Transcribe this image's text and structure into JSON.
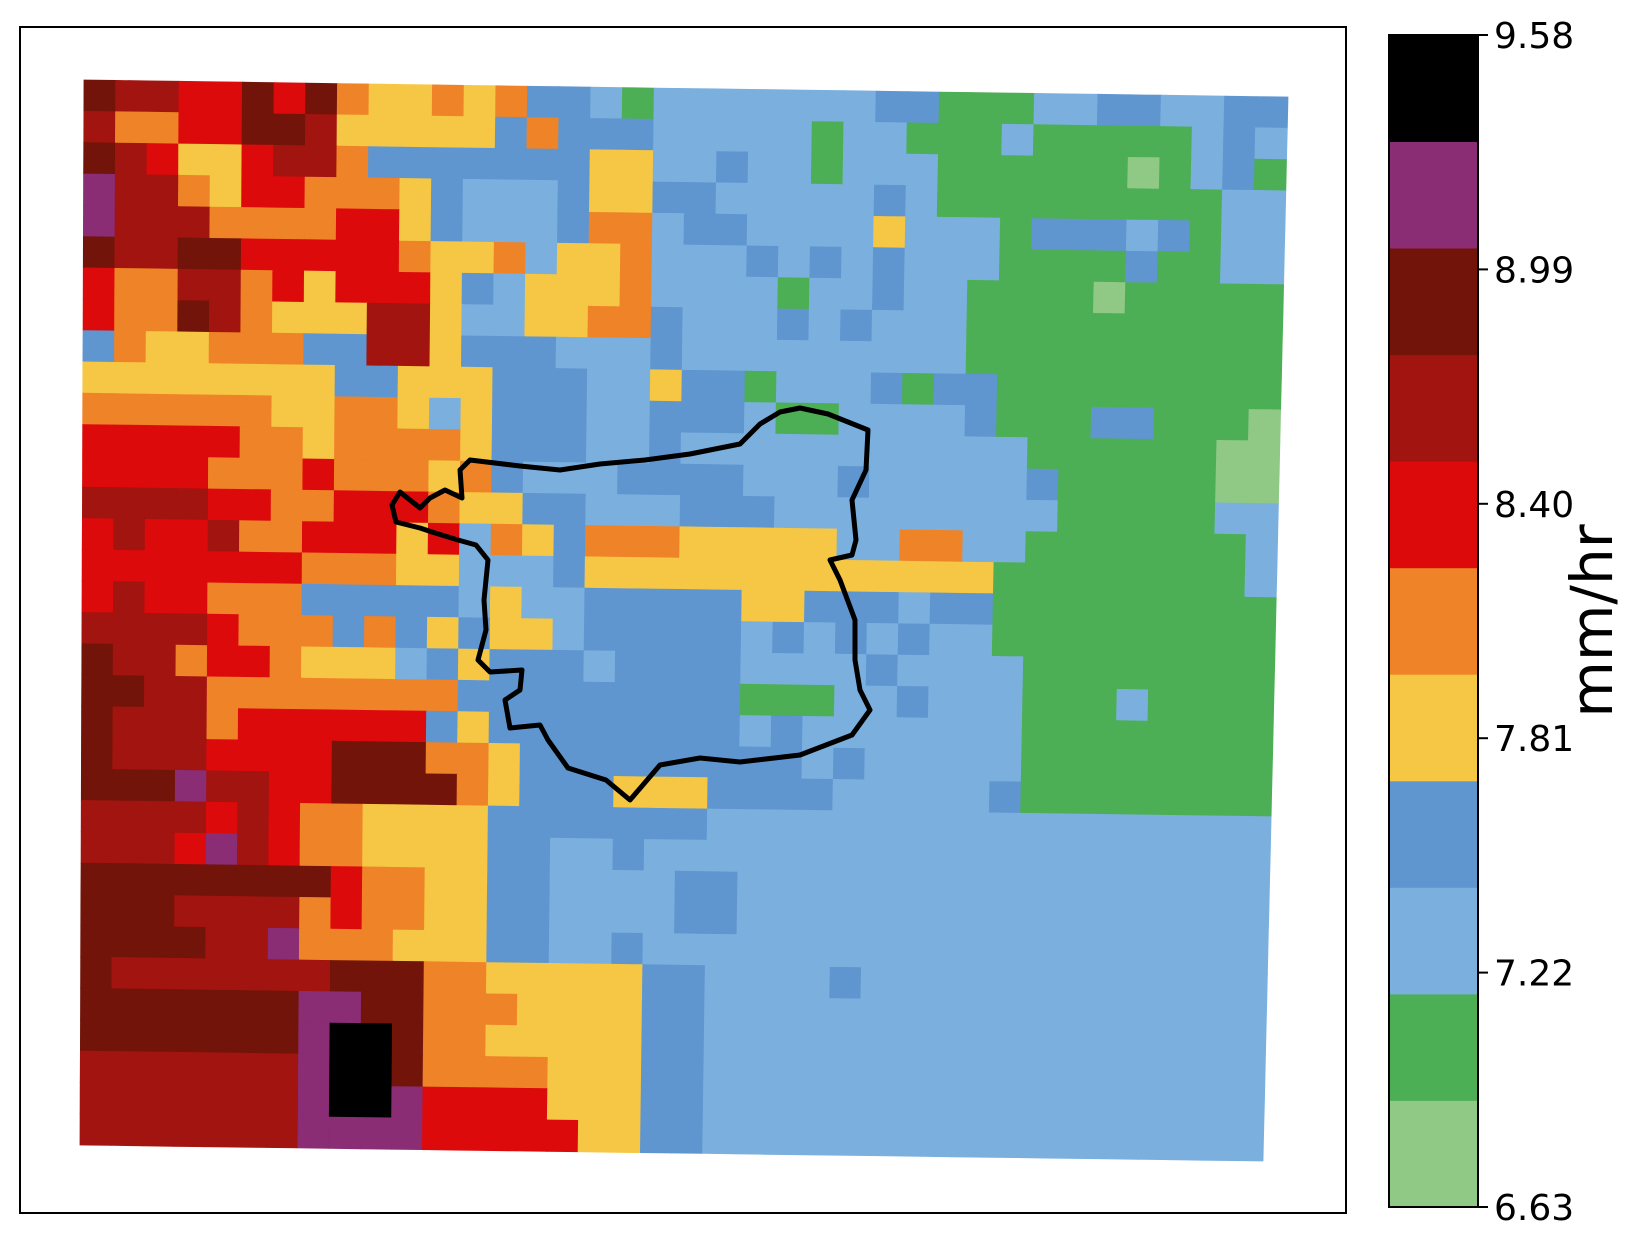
{
  "chart_data": {
    "type": "heatmap",
    "title": "",
    "xlabel": "",
    "ylabel": "",
    "colorbar": {
      "label": "mm/hr",
      "ticks": [
        "9.58",
        "8.99",
        "8.40",
        "7.81",
        "7.22",
        "6.63"
      ],
      "range": [
        6.63,
        9.58
      ],
      "bins": [
        {
          "from": 6.63,
          "to": 6.925,
          "color": "#90c986"
        },
        {
          "from": 6.925,
          "to": 7.22,
          "color": "#4daf55"
        },
        {
          "from": 7.22,
          "to": 7.515,
          "color": "#7bb0de"
        },
        {
          "from": 7.515,
          "to": 7.81,
          "color": "#5f96d0"
        },
        {
          "from": 7.81,
          "to": 8.105,
          "color": "#f6c744"
        },
        {
          "from": 8.105,
          "to": 8.4,
          "color": "#ef8328"
        },
        {
          "from": 8.4,
          "to": 8.695,
          "color": "#dd0a0c"
        },
        {
          "from": 8.695,
          "to": 8.99,
          "color": "#a2140f"
        },
        {
          "from": 8.99,
          "to": 9.285,
          "color": "#721409"
        },
        {
          "from": 9.285,
          "to": 9.58,
          "color": "#8a2d74"
        },
        {
          "from": 9.58,
          "to": 9.875,
          "color": "#000000"
        }
      ]
    },
    "grid_cols": 38,
    "grid_rows": 34,
    "grid_note": "rows top-to-bottom, one character per cell: a=6.63-6.93 b=6.93-7.22 c=7.22-7.52 d=7.52-7.81 e=7.81-8.11 f=8.11-8.40 g=8.40-8.70 h=8.70-8.99 i=8.99-9.29 j=9.29-9.58 k=>=9.58",
    "grid": [
      "ihhggigifeefefddcbcccccccddbbbccddccdd",
      "hffggiiheeeeedfdddcccccbccbbbcbbbbbcdc",
      "ihgeeghhfdddddddeeccdccbcccbbbbbbabcdb",
      "jhhfeggfffedcccdeeddcccccdcbbbbbbbbbcc",
      "jhhhffffggedcccdffcddccccecccbdddcdbcc",
      "ihhiigggggfeefceefcccdcdcdcccbbbbdbbcc",
      "gffhhfgegggedceeefccccbccdccbbbbabbbbb",
      "gffihfeeehhecceeffdcccdcdcccbbbbbbbbbb",
      "dfeefffddhhedddcccdcccccccccbbbbbbbbbb",
      "eeeeeeeeddeeedddcceddbcccdbddbbbbbbbbb",
      "ffffffeeffecedddccdddcbbccccdbbbddbbba",
      "gggggffeffffedddccdcccccccccccbbbbbbaa",
      "ggggfffgfffefdcccddddcccdcccccdbbbbbaa",
      "hhhhggffgggfeeddcccdddcccccccccbbbbbcc",
      "ghgghffgggegcfedfffeeeeeccffccbbbbbbbc",
      "gggggggfffeecccdeeeeeeeeeeeeebbbbbbbbc",
      "ghggfffdddddceccdddddeedddcddbbbbbbbbb",
      "hhhhgfffdfdedeecdddddcdcdcdccbbbbbbbbb",
      "ihhfggfeeecdedddcddddccccdccccbbbbbbbb",
      "iihhffffffffdddddddddbbbccdcccbbbcbbbb",
      "ihhhfggggggdeddddddddcdcccccccbbbbbbbb",
      "ihhhggggiiiffedddddddddcdcccccbbbbbbbb",
      "iiijhhggiiiifedddeeeddddcccccdbbbbbbbb",
      "hhhhghgffeeeedddddddcccccccccccccccccc",
      "hhhgjhgffeeeeddccdcccccccccccccccccccc",
      "iiiiiiiigffeeddccccddccccccccccccccccc",
      "iiihhhhfgffeeddccccddccccccccccccccccc",
      "iiiihhjfffeeeddccdcccccccccccccccccccc",
      "ihhhhhhhiiiffeeeeeddccccdccccccccccccc",
      "iiiiiiijjiifffeeeeddcccccccccccccccccc",
      "iiiiiiijkkiffeeeeeddcccccccccccccccccc",
      "hhhhhhhjkkiffffeeeddcccccccccccccccccc",
      "hhhhhhhjkkjggggeeeddcccccccccccccccccc",
      "hhhhhhhjjjjgggggeeddcccccccccccccccccc"
    ]
  }
}
